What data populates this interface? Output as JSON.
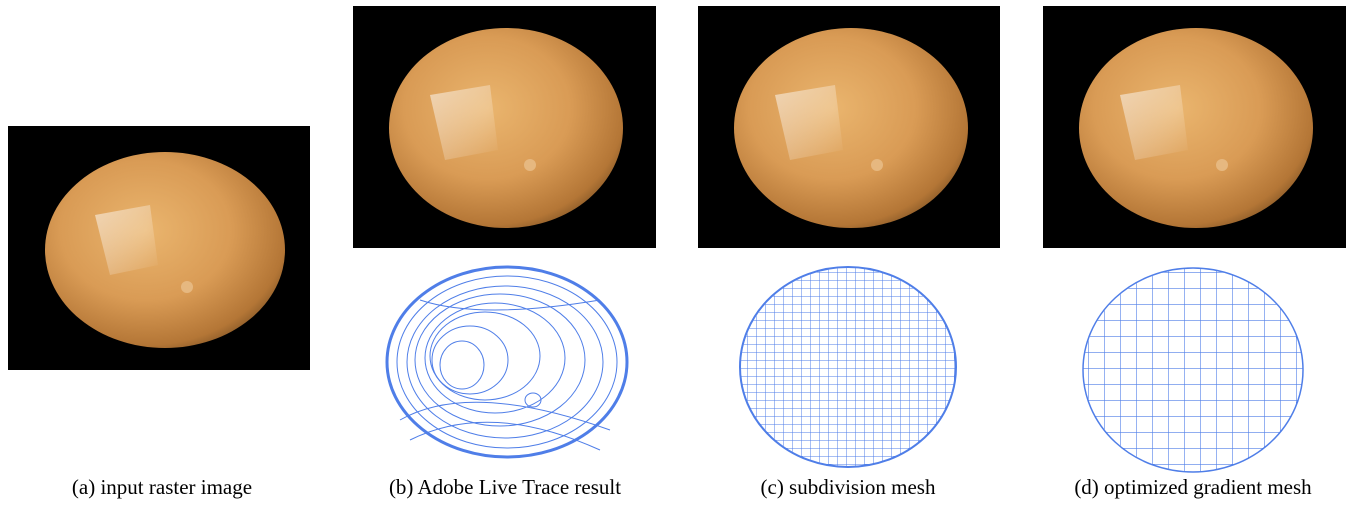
{
  "figure": {
    "captions": [
      "(a) input raster image",
      "(b) Adobe Live Trace result",
      "(c) subdivision mesh",
      "(d) optimized gradient mesh"
    ]
  }
}
